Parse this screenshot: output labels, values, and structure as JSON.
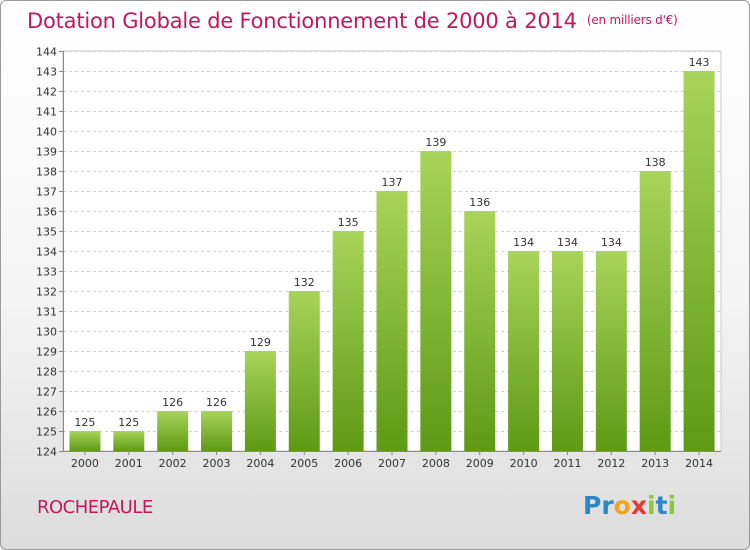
{
  "chart_data": {
    "type": "bar",
    "title": "Dotation Globale de Fonctionnement de 2000 à 2014",
    "subtitle": "(en milliers d'€)",
    "categories": [
      "2000",
      "2001",
      "2002",
      "2003",
      "2004",
      "2005",
      "2006",
      "2007",
      "2008",
      "2009",
      "2010",
      "2011",
      "2012",
      "2013",
      "2014"
    ],
    "values": [
      125,
      125,
      126,
      126,
      129,
      132,
      135,
      137,
      139,
      136,
      134,
      134,
      134,
      138,
      143
    ],
    "value_labels": [
      "125",
      "125",
      "126",
      "126",
      "129",
      "132",
      "135",
      "137",
      "139",
      "136",
      "134",
      "134",
      "134",
      "138",
      "143"
    ],
    "ylim": [
      124,
      144
    ],
    "yticks": [
      "124",
      "125",
      "126",
      "127",
      "128",
      "129",
      "130",
      "131",
      "132",
      "133",
      "134",
      "135",
      "136",
      "137",
      "138",
      "139",
      "140",
      "141",
      "142",
      "143",
      "144"
    ],
    "xlabel": "",
    "ylabel": "",
    "grid": true,
    "colors": {
      "bar_light": "#a8d45a",
      "bar_dark": "#5e9a14",
      "title": "#c2185b"
    }
  },
  "footer": {
    "commune": "ROCHEPAULE",
    "logo_letters": [
      "P",
      "r",
      "o",
      "x",
      "i",
      "t",
      "i"
    ],
    "logo_colors": [
      "#2a87c8",
      "#2a87c8",
      "#f4a11c",
      "#e53935",
      "#8dc63f",
      "#2a87c8",
      "#8dc63f"
    ]
  }
}
